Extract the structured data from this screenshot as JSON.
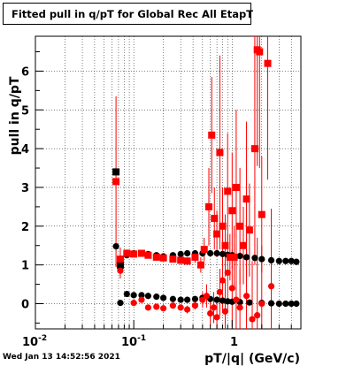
{
  "chart_data": {
    "type": "scatter",
    "title": "Fitted pull in q/pT for Global Rec All EtapT",
    "xlabel": "pT/|q| (GeV/c)",
    "ylabel": "pull in q/pT",
    "x_scale": "log",
    "xlim": [
      0.01,
      5.0
    ],
    "ylim": [
      -0.65,
      6.9
    ],
    "grid": true,
    "x_major_ticks": [
      0.01,
      0.1,
      1
    ],
    "x_tick_labels": {
      "t1": "10",
      "t1_exp": "-2",
      "t2": "10",
      "t2_exp": "-1",
      "t3": "1"
    },
    "y_ticks": [
      0,
      1,
      2,
      3,
      4,
      5,
      6
    ],
    "y_tick_labels": [
      "0",
      "1",
      "2",
      "3",
      "4",
      "5",
      "6"
    ],
    "series": [
      {
        "color": "#000000",
        "marker": "circle",
        "points": [
          [
            0.066,
            1.48
          ],
          [
            0.073,
            0.92
          ],
          [
            0.085,
            1.25
          ],
          [
            0.1,
            1.3
          ],
          [
            0.12,
            1.3
          ],
          [
            0.14,
            1.28
          ],
          [
            0.17,
            1.25
          ],
          [
            0.2,
            1.22
          ],
          [
            0.25,
            1.25
          ],
          [
            0.3,
            1.28
          ],
          [
            0.35,
            1.3
          ],
          [
            0.42,
            1.3
          ],
          [
            0.5,
            1.3
          ],
          [
            0.6,
            1.3
          ],
          [
            0.7,
            1.3
          ],
          [
            0.8,
            1.28
          ],
          [
            0.9,
            1.26
          ],
          [
            1.0,
            1.25
          ],
          [
            1.2,
            1.23
          ],
          [
            1.4,
            1.2
          ],
          [
            1.7,
            1.18
          ],
          [
            2.0,
            1.15
          ],
          [
            2.5,
            1.12
          ],
          [
            3.0,
            1.1
          ],
          [
            3.5,
            1.1
          ],
          [
            4.0,
            1.1
          ],
          [
            4.5,
            1.08
          ]
        ]
      },
      {
        "color": "#000000",
        "marker": "circle",
        "points": [
          [
            0.073,
            0.02
          ],
          [
            0.085,
            0.25
          ],
          [
            0.1,
            0.22
          ],
          [
            0.12,
            0.22
          ],
          [
            0.14,
            0.2
          ],
          [
            0.17,
            0.18
          ],
          [
            0.2,
            0.15
          ],
          [
            0.25,
            0.12
          ],
          [
            0.3,
            0.1
          ],
          [
            0.35,
            0.1
          ],
          [
            0.42,
            0.12
          ],
          [
            0.5,
            0.15
          ],
          [
            0.6,
            0.12
          ],
          [
            0.7,
            0.1
          ],
          [
            0.8,
            0.08
          ],
          [
            0.9,
            0.06
          ],
          [
            1.0,
            0.05
          ],
          [
            1.2,
            0.04
          ],
          [
            1.5,
            0.03
          ],
          [
            2.0,
            0.02
          ],
          [
            2.5,
            0.01
          ],
          [
            3.0,
            0.0
          ],
          [
            3.5,
            0.0
          ],
          [
            4.0,
            0.0
          ],
          [
            4.5,
            0.0
          ]
        ]
      },
      {
        "color": "#000000",
        "marker": "square",
        "points": [
          [
            0.066,
            3.4
          ],
          [
            0.073,
            1.0
          ]
        ]
      },
      {
        "color": "#ff0000",
        "marker": "square",
        "points": [
          [
            0.066,
            3.15,
            2.2
          ],
          [
            0.073,
            1.15,
            0.3
          ],
          [
            0.085,
            1.3,
            0.1
          ],
          [
            0.1,
            1.28,
            0.05
          ],
          [
            0.12,
            1.3,
            0.05
          ],
          [
            0.14,
            1.25,
            0.05
          ],
          [
            0.17,
            1.2,
            0.05
          ],
          [
            0.2,
            1.18,
            0.05
          ],
          [
            0.25,
            1.15,
            0.05
          ],
          [
            0.3,
            1.12,
            0.1
          ],
          [
            0.35,
            1.1,
            0.1
          ],
          [
            0.42,
            1.2,
            0.15
          ],
          [
            0.48,
            1.0,
            0.2
          ],
          [
            0.52,
            1.4,
            0.3
          ],
          [
            0.58,
            2.5,
            1.0
          ],
          [
            0.62,
            4.35,
            1.5
          ],
          [
            0.66,
            2.2,
            0.8
          ],
          [
            0.7,
            1.8,
            0.6
          ],
          [
            0.75,
            3.9,
            2.5
          ],
          [
            0.8,
            2.0,
            1.0
          ],
          [
            0.85,
            1.5,
            0.8
          ],
          [
            0.9,
            2.9,
            1.5
          ],
          [
            0.95,
            1.2,
            0.6
          ],
          [
            1.0,
            2.4,
            1.5
          ],
          [
            1.05,
            1.2,
            0.8
          ],
          [
            1.1,
            3.0,
            2.0
          ],
          [
            1.2,
            2.0,
            1.5
          ],
          [
            1.3,
            1.5,
            1.0
          ],
          [
            1.4,
            2.7,
            2.0
          ],
          [
            1.5,
            1.9,
            1.2
          ],
          [
            1.7,
            4.0,
            3.0
          ],
          [
            1.8,
            6.55,
            3.0
          ],
          [
            1.9,
            6.5,
            3.0
          ],
          [
            2.0,
            2.3,
            1.5
          ],
          [
            2.3,
            6.2,
            3.0
          ]
        ]
      },
      {
        "color": "#ff0000",
        "marker": "circle",
        "points": [
          [
            0.073,
            0.85,
            0.2
          ],
          [
            0.1,
            0.02,
            0.05
          ],
          [
            0.12,
            0.1,
            0.05
          ],
          [
            0.14,
            -0.1,
            0.05
          ],
          [
            0.17,
            -0.08,
            0.05
          ],
          [
            0.2,
            -0.12,
            0.05
          ],
          [
            0.25,
            -0.05,
            0.05
          ],
          [
            0.3,
            -0.1,
            0.05
          ],
          [
            0.35,
            -0.15,
            0.1
          ],
          [
            0.42,
            -0.05,
            0.1
          ],
          [
            0.5,
            0.1,
            0.2
          ],
          [
            0.55,
            0.2,
            0.3
          ],
          [
            0.6,
            -0.25,
            0.3
          ],
          [
            0.65,
            -0.1,
            0.4
          ],
          [
            0.7,
            -0.35,
            0.5
          ],
          [
            0.75,
            0.3,
            0.6
          ],
          [
            0.8,
            0.6,
            0.8
          ],
          [
            0.85,
            -0.2,
            0.8
          ],
          [
            0.9,
            0.8,
            1.0
          ],
          [
            1.0,
            0.4,
            1.0
          ],
          [
            1.1,
            0.1,
            1.0
          ],
          [
            1.2,
            -0.1,
            1.0
          ],
          [
            1.4,
            0.2,
            1.5
          ],
          [
            1.6,
            -0.4,
            1.5
          ],
          [
            1.8,
            -0.3,
            2.0
          ],
          [
            2.0,
            0.0,
            1.5
          ],
          [
            2.5,
            0.45,
            2.0
          ]
        ]
      }
    ]
  },
  "footer": {
    "timestamp": "Wed Jan 13 14:52:56 2021"
  }
}
